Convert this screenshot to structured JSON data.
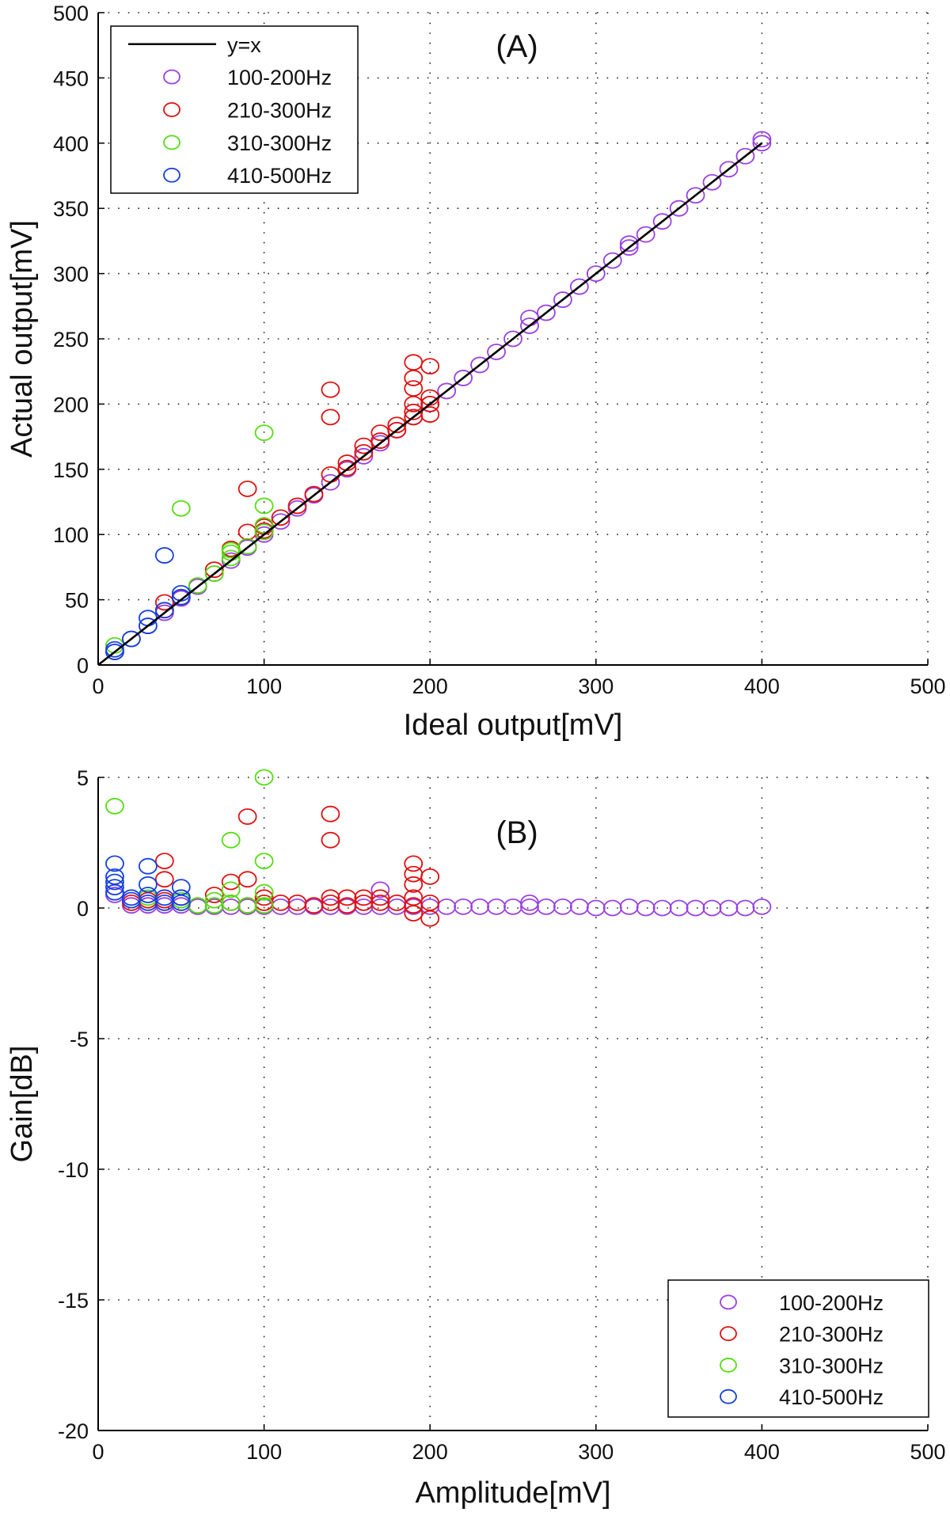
{
  "chart_data": [
    {
      "type": "scatter",
      "panel_label": "(A)",
      "xlabel": "Ideal output[mV]",
      "ylabel": "Actual output[mV]",
      "xlim": [
        0,
        500
      ],
      "ylim": [
        0,
        500
      ],
      "xticks": [
        0,
        100,
        200,
        300,
        400,
        500
      ],
      "yticks": [
        0,
        50,
        100,
        150,
        200,
        250,
        300,
        350,
        400,
        450,
        500
      ],
      "grid": true,
      "legend_position": "top-left",
      "reference_line": {
        "name": "y=x",
        "x": [
          0,
          400
        ],
        "y": [
          0,
          400
        ],
        "color": "#000000"
      },
      "series": [
        {
          "name": "100-200Hz",
          "color": "#9b3fe3",
          "x": [
            10,
            20,
            30,
            40,
            50,
            60,
            70,
            80,
            90,
            100,
            110,
            120,
            130,
            140,
            150,
            160,
            170,
            180,
            190,
            200,
            210,
            220,
            230,
            240,
            250,
            260,
            260,
            270,
            280,
            290,
            300,
            310,
            320,
            320,
            330,
            340,
            350,
            360,
            370,
            380,
            390,
            400,
            400
          ],
          "y": [
            10,
            20,
            30,
            40,
            51,
            60,
            70,
            80,
            90,
            100,
            110,
            120,
            130,
            140,
            150,
            160,
            170,
            180,
            190,
            200,
            210,
            220,
            230,
            240,
            250,
            260,
            266,
            270,
            280,
            290,
            300,
            310,
            320,
            323,
            330,
            340,
            350,
            360,
            370,
            380,
            390,
            400,
            403
          ]
        },
        {
          "name": "210-300Hz",
          "color": "#e01010",
          "x": [
            40,
            40,
            50,
            70,
            80,
            90,
            90,
            100,
            100,
            110,
            120,
            130,
            140,
            140,
            140,
            150,
            150,
            160,
            160,
            170,
            170,
            180,
            180,
            190,
            190,
            190,
            190,
            190,
            190,
            200,
            200,
            200,
            200
          ],
          "y": [
            42,
            48,
            52,
            73,
            89,
            102,
            135,
            103,
            106,
            113,
            122,
            131,
            146,
            190,
            211,
            151,
            155,
            163,
            168,
            172,
            178,
            180,
            184,
            190,
            194,
            200,
            212,
            220,
            232,
            200,
            205,
            192,
            229
          ]
        },
        {
          "name": "310-300Hz",
          "color": "#55dd10",
          "x": [
            10,
            50,
            60,
            70,
            80,
            80,
            80,
            90,
            100,
            100,
            100,
            100
          ],
          "y": [
            15,
            120,
            61,
            70,
            82,
            86,
            88,
            91,
            102,
            107,
            122,
            178
          ]
        },
        {
          "name": "410-500Hz",
          "color": "#1540e0",
          "x": [
            10,
            10,
            20,
            30,
            30,
            40,
            40,
            50,
            50
          ],
          "y": [
            10,
            12,
            20,
            30,
            36,
            42,
            84,
            52,
            55
          ]
        }
      ]
    },
    {
      "type": "scatter",
      "panel_label": "(B)",
      "xlabel": "Amplitude[mV]",
      "ylabel": "Gain[dB]",
      "xlim": [
        0,
        500
      ],
      "ylim": [
        -20,
        5
      ],
      "xticks": [
        0,
        100,
        200,
        300,
        400,
        500
      ],
      "yticks": [
        -20,
        -15,
        -10,
        -5,
        0,
        5
      ],
      "grid": true,
      "legend_position": "bottom-right",
      "series": [
        {
          "name": "100-200Hz",
          "color": "#9b3fe3",
          "x": [
            10,
            20,
            30,
            40,
            50,
            60,
            70,
            80,
            90,
            100,
            110,
            120,
            130,
            140,
            150,
            160,
            170,
            170,
            180,
            190,
            200,
            210,
            220,
            230,
            240,
            250,
            260,
            260,
            270,
            280,
            290,
            300,
            310,
            320,
            330,
            340,
            350,
            360,
            370,
            380,
            390,
            400
          ],
          "y": [
            0.5,
            0.1,
            0.1,
            0.1,
            0.1,
            0.05,
            0.05,
            0.05,
            0.05,
            0.05,
            0.05,
            0.05,
            0.05,
            0.05,
            0.05,
            0.05,
            0.05,
            0.7,
            0.05,
            0.05,
            0.05,
            0.05,
            0.05,
            0.05,
            0.05,
            0.05,
            0.05,
            0.2,
            0.05,
            0.05,
            0.05,
            0.0,
            0.0,
            0.05,
            0.0,
            0.0,
            0.0,
            0.0,
            0.0,
            0.0,
            0.0,
            0.05
          ]
        },
        {
          "name": "210-300Hz",
          "color": "#e01010",
          "x": [
            20,
            30,
            40,
            40,
            40,
            50,
            70,
            80,
            80,
            90,
            90,
            90,
            100,
            100,
            110,
            120,
            130,
            140,
            140,
            140,
            140,
            150,
            150,
            160,
            160,
            170,
            170,
            180,
            190,
            190,
            190,
            190,
            190,
            190,
            200,
            200,
            200
          ],
          "y": [
            0.2,
            0.3,
            0.3,
            1.1,
            1.8,
            0.4,
            0.5,
            0.2,
            1.0,
            0.1,
            1.1,
            3.5,
            0.2,
            0.4,
            0.2,
            0.2,
            0.1,
            0.2,
            0.4,
            2.6,
            3.6,
            0.1,
            0.4,
            0.2,
            0.4,
            0.2,
            0.4,
            0.2,
            -0.2,
            0.4,
            0.9,
            1.3,
            1.7,
            0.1,
            -0.4,
            0.2,
            1.2
          ]
        },
        {
          "name": "310-300Hz",
          "color": "#55dd10",
          "x": [
            10,
            30,
            50,
            60,
            70,
            70,
            80,
            80,
            80,
            90,
            100,
            100,
            100,
            100
          ],
          "y": [
            3.9,
            0.4,
            0.3,
            0.1,
            0.1,
            0.3,
            0.2,
            0.7,
            2.6,
            0.1,
            0.1,
            0.6,
            1.8,
            5.0
          ]
        },
        {
          "name": "410-500Hz",
          "color": "#1540e0",
          "x": [
            10,
            10,
            10,
            10,
            10,
            20,
            20,
            30,
            30,
            30,
            30,
            40,
            40,
            50,
            50,
            50
          ],
          "y": [
            0.6,
            0.8,
            1.0,
            1.2,
            1.7,
            0.3,
            0.4,
            0.2,
            0.5,
            0.9,
            1.6,
            0.2,
            0.4,
            0.2,
            0.4,
            0.8
          ]
        }
      ]
    }
  ]
}
